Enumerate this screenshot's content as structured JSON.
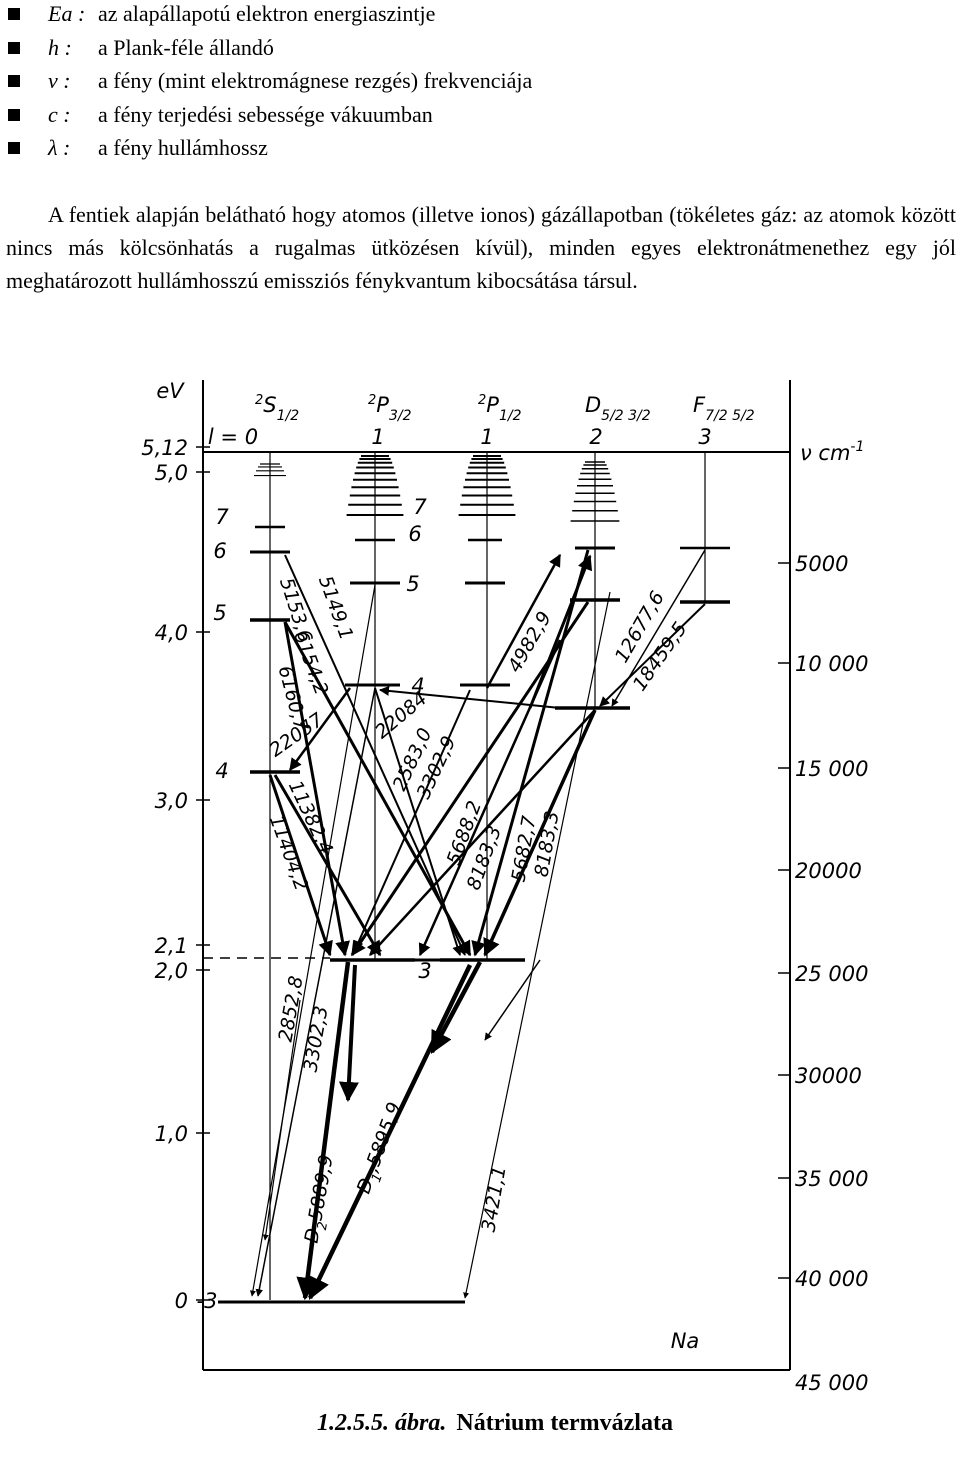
{
  "bullets": [
    {
      "symbol": "Ea :",
      "text": "az alapállapotú elektron energiaszintje"
    },
    {
      "symbol": "h :",
      "text": "a Plank-féle állandó"
    },
    {
      "symbol": "ν :",
      "text": "a fény (mint elektromágnese rezgés) frekvenciája"
    },
    {
      "symbol": "c :",
      "text": "a fény terjedési sebessége vákuumban"
    },
    {
      "symbol": "λ :",
      "text": "a fény hullámhossz"
    }
  ],
  "paragraph": "A fentiek alapján belátható hogy atomos (illetve ionos) gázállapotban (tökéletes gáz: az atomok között nincs más kölcsönhatás a rugalmas ütközésen kívül), minden egyes elektronátmenethez egy jól meghatározott hullámhosszú emissziós fénykvantum kibocsátása társul.",
  "figure": {
    "ev_axis": {
      "unit": "eV",
      "ticks": [
        "5,12",
        "5,0",
        "4,0",
        "3,0",
        "2,1",
        "2,0",
        "1,0",
        "0"
      ]
    },
    "wavenumber_axis": {
      "unit": {
        "main": "ν cm",
        "sup": "-1"
      },
      "ticks": [
        "5000",
        "10 000",
        "15 000",
        "20000",
        "25 000",
        "30000",
        "35 000",
        "40 000",
        "45 000"
      ]
    },
    "columns": [
      {
        "sup": "2",
        "main": "S",
        "sub": "1/2",
        "l": "l = 0"
      },
      {
        "sup": "2",
        "main": "P",
        "sub": "3/2",
        "l": "1"
      },
      {
        "sup": "2",
        "main": "P",
        "sub": "1/2",
        "l": "1"
      },
      {
        "main": "D",
        "sub": "5/2 3/2",
        "l": "2"
      },
      {
        "main": "F",
        "sub": "7/2 5/2",
        "l": "3"
      }
    ],
    "level_labels": [
      "7",
      "6",
      "5",
      "4",
      "-3",
      "7",
      "6",
      "5",
      "4",
      "3"
    ],
    "transitions": [
      {
        "text": "5149,1"
      },
      {
        "text": "5153,6"
      },
      {
        "text": "6154,2"
      },
      {
        "text": "6160,7"
      },
      {
        "text": "22057"
      },
      {
        "text": "22084"
      },
      {
        "text": "2583,0"
      },
      {
        "text": "3302,9"
      },
      {
        "text": "4982,9"
      },
      {
        "text": "12677,6"
      },
      {
        "text": "18459,5"
      },
      {
        "text": "11382,4"
      },
      {
        "text": "11404,2"
      },
      {
        "text": "5688,2"
      },
      {
        "text": "8183,3"
      },
      {
        "text": "5682,7"
      },
      {
        "text": "8183,3"
      },
      {
        "text": "2852,8"
      },
      {
        "text": "3302,3"
      },
      {
        "prefix": "D",
        "sub": "2",
        "text": "5889,9"
      },
      {
        "prefix": "D",
        "sub": "1",
        "text": ",5895,9"
      },
      {
        "text": "3421,1"
      }
    ],
    "element": "Na",
    "caption": {
      "number": "1.2.5.5. ábra.",
      "title": "Nátrium termvázlata"
    }
  }
}
